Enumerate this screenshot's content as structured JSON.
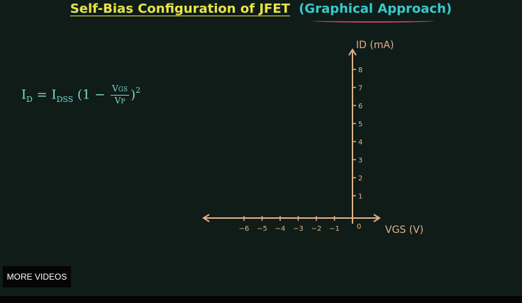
{
  "title": {
    "main": "Self-Bias Configuration of JFET",
    "sub": "(Graphical Approach)"
  },
  "formula": {
    "lhs": "I",
    "lhs_sub": "D",
    "eq": " = I",
    "idss_sub": "DSS",
    "open": " (1 − ",
    "num": "V",
    "num_sub": "GS",
    "den": "V",
    "den_sub": "P",
    "close": ")",
    "exp": "2"
  },
  "chart_data": {
    "type": "line",
    "xlabel": "VGS (V)",
    "ylabel": "ID (mA)",
    "x_ticks": [
      -6,
      -5,
      -4,
      -3,
      -2,
      -1
    ],
    "y_ticks": [
      1,
      2,
      3,
      4,
      5,
      6,
      7,
      8
    ],
    "origin_label": "0",
    "xlim": [
      -8,
      1.5
    ],
    "ylim": [
      0,
      9
    ],
    "series": []
  },
  "button": {
    "more_videos": "MORE VIDEOS"
  },
  "colors": {
    "board": "#0f1c18",
    "axis": "#e0b08a",
    "title": "#e8e34a",
    "subtitle": "#39c9c9",
    "formula": "#7fd8d0"
  }
}
